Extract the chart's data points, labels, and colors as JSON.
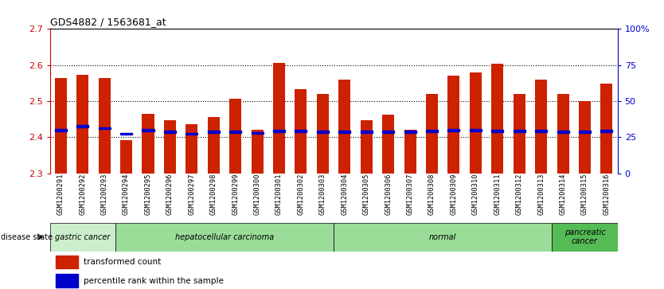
{
  "title": "GDS4882 / 1563681_at",
  "samples": [
    "GSM1200291",
    "GSM1200292",
    "GSM1200293",
    "GSM1200294",
    "GSM1200295",
    "GSM1200296",
    "GSM1200297",
    "GSM1200298",
    "GSM1200299",
    "GSM1200300",
    "GSM1200301",
    "GSM1200302",
    "GSM1200303",
    "GSM1200304",
    "GSM1200305",
    "GSM1200306",
    "GSM1200307",
    "GSM1200308",
    "GSM1200309",
    "GSM1200310",
    "GSM1200311",
    "GSM1200312",
    "GSM1200313",
    "GSM1200314",
    "GSM1200315",
    "GSM1200316"
  ],
  "bar_values": [
    2.565,
    2.572,
    2.565,
    2.393,
    2.464,
    2.448,
    2.436,
    2.455,
    2.507,
    2.42,
    2.605,
    2.533,
    2.52,
    2.56,
    2.447,
    2.463,
    2.42,
    2.52,
    2.57,
    2.58,
    2.603,
    2.52,
    2.56,
    2.52,
    2.5,
    2.548
  ],
  "percentile_values": [
    2.42,
    2.43,
    2.425,
    2.41,
    2.42,
    2.415,
    2.41,
    2.415,
    2.415,
    2.412,
    2.418,
    2.418,
    2.416,
    2.415,
    2.415,
    2.415,
    2.415,
    2.418,
    2.42,
    2.42,
    2.418,
    2.418,
    2.418,
    2.415,
    2.415,
    2.418
  ],
  "ymin": 2.3,
  "ymax": 2.7,
  "bar_color": "#cc2200",
  "percentile_color": "#0000cc",
  "left_yticks": [
    2.3,
    2.4,
    2.5,
    2.6,
    2.7
  ],
  "right_yticks": [
    0,
    25,
    50,
    75,
    100
  ],
  "right_ytick_labels": [
    "0",
    "25",
    "50",
    "75",
    "100%"
  ],
  "grid_lines": [
    2.4,
    2.5,
    2.6
  ],
  "disease_groups": [
    {
      "label": "gastric cancer",
      "start": 0,
      "end": 3,
      "color": "#cceecc"
    },
    {
      "label": "hepatocellular carcinoma",
      "start": 3,
      "end": 13,
      "color": "#99dd99"
    },
    {
      "label": "normal",
      "start": 13,
      "end": 23,
      "color": "#99dd99"
    },
    {
      "label": "pancreatic\ncancer",
      "start": 23,
      "end": 26,
      "color": "#55bb55"
    }
  ]
}
